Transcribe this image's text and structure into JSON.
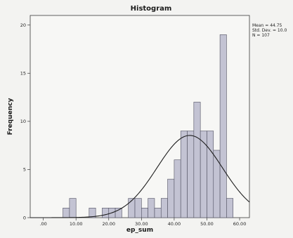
{
  "chart_data": {
    "type": "bar",
    "title": "Histogram",
    "xlabel": "ep_sum",
    "ylabel": "Frequency",
    "xlim": [
      -4,
      63
    ],
    "ylim": [
      0,
      21
    ],
    "bin_width": 2,
    "x_ticks": [
      0,
      10,
      20,
      30,
      40,
      50,
      60
    ],
    "x_tick_labels": [
      ".00",
      "10.00",
      "20.00",
      "30.00",
      "40.00",
      "50.00",
      "60.00"
    ],
    "y_ticks": [
      0,
      5,
      10,
      15,
      20
    ],
    "y_tick_labels": [
      "0",
      "5",
      "10",
      "15",
      "20"
    ],
    "bins": [
      {
        "start": 6,
        "count": 1
      },
      {
        "start": 8,
        "count": 2
      },
      {
        "start": 10,
        "count": 0
      },
      {
        "start": 12,
        "count": 0
      },
      {
        "start": 14,
        "count": 1
      },
      {
        "start": 16,
        "count": 0
      },
      {
        "start": 18,
        "count": 1
      },
      {
        "start": 20,
        "count": 1
      },
      {
        "start": 22,
        "count": 1
      },
      {
        "start": 24,
        "count": 0
      },
      {
        "start": 26,
        "count": 2
      },
      {
        "start": 28,
        "count": 2
      },
      {
        "start": 30,
        "count": 1
      },
      {
        "start": 32,
        "count": 2
      },
      {
        "start": 34,
        "count": 1
      },
      {
        "start": 36,
        "count": 2
      },
      {
        "start": 38,
        "count": 4
      },
      {
        "start": 40,
        "count": 6
      },
      {
        "start": 42,
        "count": 9
      },
      {
        "start": 44,
        "count": 9
      },
      {
        "start": 46,
        "count": 12
      },
      {
        "start": 48,
        "count": 9
      },
      {
        "start": 50,
        "count": 9
      },
      {
        "start": 52,
        "count": 7
      },
      {
        "start": 54,
        "count": 19
      },
      {
        "start": 56,
        "count": 2
      }
    ],
    "normal_curve": {
      "mean": 44.75,
      "std_dev": 10.0,
      "n": 107
    },
    "stats": {
      "mean_label": "Mean = 44.75",
      "std_label": "Std. Dev. = 10.0",
      "n_label": "N = 107"
    },
    "grid": false,
    "colors": {
      "bar_fill": "#c3c3d3",
      "bar_stroke": "#505060",
      "curve": "#1e1e1e",
      "plot_bg": "#f7f7f5"
    }
  }
}
